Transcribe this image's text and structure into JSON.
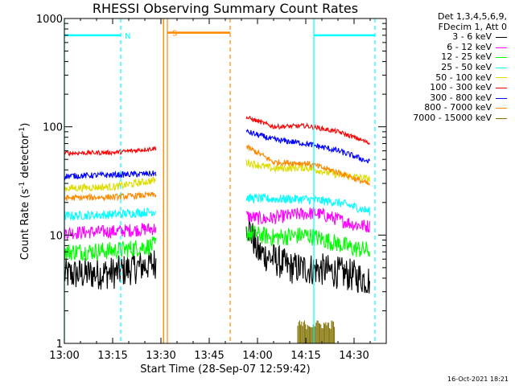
{
  "chart_data": {
    "type": "line",
    "title": "RHESSI Observing Summary Count Rates",
    "xlabel": "Start Time (28-Sep-07 12:59:42)",
    "ylabel": "Count Rate (s",
    "ylabel_sup1": "-1",
    "ylabel_mid": " detector",
    "ylabel_sup2": "-1",
    "ylabel_end": ")",
    "x_unit": "minutes since 13:00",
    "xlim": [
      0,
      100
    ],
    "ylim": [
      1,
      1000
    ],
    "y_scale": "log",
    "x_ticks": [
      {
        "label": "13:00",
        "t": 0
      },
      {
        "label": "13:15",
        "t": 15
      },
      {
        "label": "13:30",
        "t": 30
      },
      {
        "label": "13:45",
        "t": 45
      },
      {
        "label": "14:00",
        "t": 60
      },
      {
        "label": "14:15",
        "t": 75
      },
      {
        "label": "14:30",
        "t": 90
      }
    ],
    "y_ticks": [
      {
        "label": "1",
        "v": 1
      },
      {
        "label": "10",
        "v": 10
      },
      {
        "label": "100",
        "v": 100
      },
      {
        "label": "1000",
        "v": 1000
      }
    ],
    "gaps": [
      [
        28.5,
        56.5
      ]
    ],
    "series": [
      {
        "name": "3 - 6 keV",
        "color": "#000000",
        "noise": 0.22,
        "points": [
          [
            0,
            4.3
          ],
          [
            16,
            4.5
          ],
          [
            28,
            5.5
          ],
          [
            29.5,
            6.0
          ],
          [
            56.5,
            13.0
          ],
          [
            60,
            7.0
          ],
          [
            70,
            5.0
          ],
          [
            80,
            4.8
          ],
          [
            90,
            4.2
          ],
          [
            95,
            3.8
          ]
        ]
      },
      {
        "name": "6 - 12 keV",
        "color": "#ff00ff",
        "noise": 0.09,
        "points": [
          [
            0,
            10.5
          ],
          [
            16,
            10.8
          ],
          [
            28,
            11.5
          ],
          [
            29.5,
            12.0
          ],
          [
            56.5,
            15.0
          ],
          [
            62,
            14.0
          ],
          [
            72,
            15.5
          ],
          [
            78,
            16.0
          ],
          [
            90,
            12.5
          ],
          [
            95,
            12.0
          ]
        ]
      },
      {
        "name": "12 - 25 keV",
        "color": "#00ff00",
        "noise": 0.12,
        "points": [
          [
            0,
            7.0
          ],
          [
            16,
            7.2
          ],
          [
            28,
            8.0
          ],
          [
            29.5,
            8.5
          ],
          [
            56.5,
            10.5
          ],
          [
            65,
            9.5
          ],
          [
            75,
            10.0
          ],
          [
            90,
            7.5
          ],
          [
            95,
            7.2
          ]
        ]
      },
      {
        "name": "25 - 50 keV",
        "color": "#00ffff",
        "noise": 0.06,
        "points": [
          [
            0,
            15.0
          ],
          [
            16,
            15.5
          ],
          [
            28,
            16.5
          ],
          [
            29.5,
            17.0
          ],
          [
            56.5,
            22.0
          ],
          [
            65,
            21.5
          ],
          [
            75,
            21.5
          ],
          [
            85,
            20.0
          ],
          [
            95,
            16.5
          ]
        ]
      },
      {
        "name": "50 - 100 keV",
        "color": "#dddd00",
        "noise": 0.05,
        "points": [
          [
            0,
            27.0
          ],
          [
            16,
            28.0
          ],
          [
            28,
            32.0
          ],
          [
            29.5,
            33.0
          ],
          [
            56.5,
            47.0
          ],
          [
            65,
            41.0
          ],
          [
            75,
            42.0
          ],
          [
            85,
            36.0
          ],
          [
            95,
            33.0
          ]
        ]
      },
      {
        "name": "100 - 300 keV",
        "color": "#ff0000",
        "noise": 0.03,
        "points": [
          [
            0,
            57.0
          ],
          [
            16,
            58.0
          ],
          [
            28,
            63.0
          ],
          [
            29.5,
            64.0
          ],
          [
            56.5,
            122.0
          ],
          [
            65,
            100.0
          ],
          [
            75,
            102.0
          ],
          [
            85,
            90.0
          ],
          [
            95,
            70.0
          ]
        ]
      },
      {
        "name": "300 - 800 keV",
        "color": "#0000ff",
        "noise": 0.04,
        "points": [
          [
            0,
            35.0
          ],
          [
            16,
            36.0
          ],
          [
            28,
            37.0
          ],
          [
            29.5,
            37.5
          ],
          [
            56.5,
            90.0
          ],
          [
            65,
            76.0
          ],
          [
            75,
            70.0
          ],
          [
            85,
            60.0
          ],
          [
            95,
            47.0
          ]
        ]
      },
      {
        "name": "800 - 7000 keV",
        "color": "#ff8800",
        "noise": 0.04,
        "points": [
          [
            0,
            22.0
          ],
          [
            16,
            22.5
          ],
          [
            28,
            23.5
          ],
          [
            29.5,
            24.0
          ],
          [
            56.5,
            65.0
          ],
          [
            65,
            47.0
          ],
          [
            75,
            46.0
          ],
          [
            85,
            38.0
          ],
          [
            95,
            29.0
          ]
        ]
      },
      {
        "name": "7000 - 15000 keV",
        "color": "#807000",
        "noise": 0.0,
        "bursts": [
          [
            72.5,
            84.0
          ]
        ],
        "points": []
      }
    ],
    "legend": {
      "position": "top-right",
      "header": [
        "Det 1,3,4,5,6,9,",
        "FDecim 1, Att 0"
      ]
    },
    "flags": [
      {
        "label": "N",
        "color": "#00ffff",
        "start": 0,
        "end": 17.5,
        "solid_at": 0,
        "dashed_at": 17.5,
        "level": 700
      },
      {
        "label": "",
        "color": "#00ffff",
        "start": 77.5,
        "end": 96.5,
        "solid_at": 77.5,
        "dashed_at": 96.5,
        "level": 700
      },
      {
        "label": "S",
        "color": "#ff8800",
        "start": 32.0,
        "end": 51.5,
        "solid_at": 32.0,
        "dashed_at": 51.5,
        "level": 740
      }
    ],
    "saa_marks": [
      {
        "t": 30.8,
        "color": "#ff8800"
      }
    ],
    "grid": false
  },
  "footer": {
    "timestamp": "16-Oct-2021 18:21"
  }
}
